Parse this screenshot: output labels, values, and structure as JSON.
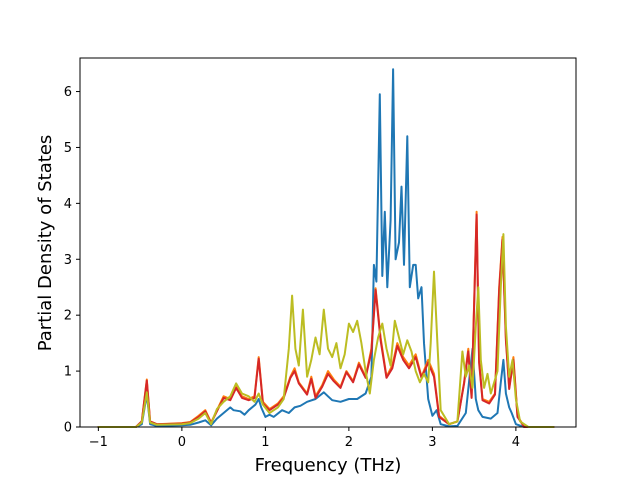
{
  "chart_data": {
    "type": "line",
    "xlabel": "Frequency (THz)",
    "ylabel": "Partial Density of States",
    "xlim": [
      -1.22,
      4.72
    ],
    "ylim": [
      0,
      6.6
    ],
    "xticks": [
      -1,
      0,
      1,
      2,
      3,
      4
    ],
    "xtick_labels": [
      "−1",
      "0",
      "1",
      "2",
      "3",
      "4"
    ],
    "yticks": [
      0,
      1,
      2,
      3,
      4,
      5,
      6
    ],
    "ytick_labels": [
      "0",
      "1",
      "2",
      "3",
      "4",
      "5",
      "6"
    ],
    "grid": false,
    "legend": "none",
    "series": [
      {
        "color": "#1f77b4",
        "points": [
          [
            -1,
            0
          ],
          [
            -0.55,
            0
          ],
          [
            -0.48,
            0.05
          ],
          [
            -0.42,
            0.58
          ],
          [
            -0.38,
            0.05
          ],
          [
            -0.3,
            0.02
          ],
          [
            0,
            0.03
          ],
          [
            0.1,
            0.04
          ],
          [
            0.2,
            0.08
          ],
          [
            0.28,
            0.12
          ],
          [
            0.35,
            0.03
          ],
          [
            0.42,
            0.15
          ],
          [
            0.5,
            0.25
          ],
          [
            0.58,
            0.35
          ],
          [
            0.62,
            0.3
          ],
          [
            0.7,
            0.28
          ],
          [
            0.75,
            0.22
          ],
          [
            0.8,
            0.3
          ],
          [
            0.88,
            0.4
          ],
          [
            0.92,
            0.5
          ],
          [
            0.95,
            0.35
          ],
          [
            1.0,
            0.18
          ],
          [
            1.05,
            0.22
          ],
          [
            1.1,
            0.18
          ],
          [
            1.2,
            0.3
          ],
          [
            1.28,
            0.25
          ],
          [
            1.35,
            0.35
          ],
          [
            1.42,
            0.38
          ],
          [
            1.5,
            0.45
          ],
          [
            1.6,
            0.5
          ],
          [
            1.7,
            0.62
          ],
          [
            1.75,
            0.55
          ],
          [
            1.8,
            0.48
          ],
          [
            1.9,
            0.45
          ],
          [
            2.0,
            0.5
          ],
          [
            2.1,
            0.5
          ],
          [
            2.2,
            0.6
          ],
          [
            2.27,
            0.9
          ],
          [
            2.3,
            2.9
          ],
          [
            2.33,
            2.6
          ],
          [
            2.37,
            5.95
          ],
          [
            2.4,
            2.7
          ],
          [
            2.43,
            3.85
          ],
          [
            2.46,
            2.5
          ],
          [
            2.5,
            3.7
          ],
          [
            2.53,
            6.4
          ],
          [
            2.56,
            3.0
          ],
          [
            2.6,
            3.3
          ],
          [
            2.63,
            4.3
          ],
          [
            2.66,
            2.9
          ],
          [
            2.7,
            5.2
          ],
          [
            2.73,
            2.5
          ],
          [
            2.77,
            2.9
          ],
          [
            2.8,
            2.9
          ],
          [
            2.83,
            2.3
          ],
          [
            2.87,
            2.5
          ],
          [
            2.9,
            1.5
          ],
          [
            2.95,
            0.5
          ],
          [
            3.0,
            0.2
          ],
          [
            3.05,
            0.3
          ],
          [
            3.1,
            0.05
          ],
          [
            3.2,
            0.01
          ],
          [
            3.3,
            0.02
          ],
          [
            3.4,
            0.25
          ],
          [
            3.48,
            1.4
          ],
          [
            3.52,
            0.5
          ],
          [
            3.55,
            0.3
          ],
          [
            3.6,
            0.18
          ],
          [
            3.7,
            0.15
          ],
          [
            3.78,
            0.25
          ],
          [
            3.82,
            0.8
          ],
          [
            3.85,
            1.2
          ],
          [
            3.88,
            0.6
          ],
          [
            3.92,
            0.35
          ],
          [
            3.95,
            0.25
          ],
          [
            4.0,
            0.05
          ],
          [
            4.1,
            0
          ],
          [
            4.45,
            0
          ]
        ]
      },
      {
        "color": "#ff7f0e",
        "points": [
          [
            -1,
            0
          ],
          [
            -0.55,
            0
          ],
          [
            -0.48,
            0.1
          ],
          [
            -0.42,
            0.85
          ],
          [
            -0.38,
            0.1
          ],
          [
            -0.3,
            0.05
          ],
          [
            0,
            0.07
          ],
          [
            0.1,
            0.09
          ],
          [
            0.2,
            0.2
          ],
          [
            0.28,
            0.3
          ],
          [
            0.35,
            0.08
          ],
          [
            0.42,
            0.3
          ],
          [
            0.5,
            0.55
          ],
          [
            0.58,
            0.5
          ],
          [
            0.65,
            0.72
          ],
          [
            0.72,
            0.55
          ],
          [
            0.8,
            0.5
          ],
          [
            0.87,
            0.55
          ],
          [
            0.92,
            1.25
          ],
          [
            0.97,
            0.45
          ],
          [
            1.05,
            0.32
          ],
          [
            1.15,
            0.42
          ],
          [
            1.22,
            0.55
          ],
          [
            1.3,
            0.9
          ],
          [
            1.35,
            1.05
          ],
          [
            1.4,
            0.8
          ],
          [
            1.5,
            0.6
          ],
          [
            1.55,
            0.9
          ],
          [
            1.6,
            0.55
          ],
          [
            1.68,
            0.75
          ],
          [
            1.75,
            1.0
          ],
          [
            1.82,
            0.85
          ],
          [
            1.9,
            0.72
          ],
          [
            1.97,
            1.0
          ],
          [
            2.05,
            0.82
          ],
          [
            2.12,
            1.15
          ],
          [
            2.2,
            0.9
          ],
          [
            2.27,
            1.4
          ],
          [
            2.32,
            2.48
          ],
          [
            2.38,
            1.6
          ],
          [
            2.45,
            0.9
          ],
          [
            2.52,
            1.1
          ],
          [
            2.58,
            1.5
          ],
          [
            2.65,
            1.25
          ],
          [
            2.72,
            1.1
          ],
          [
            2.8,
            1.3
          ],
          [
            2.87,
            0.9
          ],
          [
            2.95,
            1.2
          ],
          [
            3.02,
            0.95
          ],
          [
            3.08,
            0.2
          ],
          [
            3.2,
            0.05
          ],
          [
            3.3,
            0.1
          ],
          [
            3.38,
            0.8
          ],
          [
            3.43,
            1.4
          ],
          [
            3.47,
            0.55
          ],
          [
            3.5,
            2.2
          ],
          [
            3.53,
            3.85
          ],
          [
            3.56,
            1.2
          ],
          [
            3.6,
            0.5
          ],
          [
            3.68,
            0.45
          ],
          [
            3.75,
            0.6
          ],
          [
            3.8,
            2.5
          ],
          [
            3.84,
            3.4
          ],
          [
            3.88,
            1.6
          ],
          [
            3.92,
            0.7
          ],
          [
            3.97,
            1.25
          ],
          [
            4.02,
            0.2
          ],
          [
            4.1,
            0
          ],
          [
            4.45,
            0
          ]
        ]
      },
      {
        "color": "#d62728",
        "points": [
          [
            -1,
            0
          ],
          [
            -0.55,
            0
          ],
          [
            -0.48,
            0.1
          ],
          [
            -0.42,
            0.83
          ],
          [
            -0.38,
            0.1
          ],
          [
            -0.3,
            0.05
          ],
          [
            0,
            0.06
          ],
          [
            0.1,
            0.08
          ],
          [
            0.2,
            0.18
          ],
          [
            0.28,
            0.28
          ],
          [
            0.35,
            0.07
          ],
          [
            0.42,
            0.28
          ],
          [
            0.5,
            0.52
          ],
          [
            0.58,
            0.48
          ],
          [
            0.65,
            0.7
          ],
          [
            0.72,
            0.52
          ],
          [
            0.8,
            0.48
          ],
          [
            0.87,
            0.52
          ],
          [
            0.92,
            1.22
          ],
          [
            0.97,
            0.42
          ],
          [
            1.05,
            0.3
          ],
          [
            1.15,
            0.4
          ],
          [
            1.22,
            0.52
          ],
          [
            1.3,
            0.88
          ],
          [
            1.35,
            1.0
          ],
          [
            1.4,
            0.78
          ],
          [
            1.5,
            0.58
          ],
          [
            1.55,
            0.86
          ],
          [
            1.6,
            0.52
          ],
          [
            1.68,
            0.72
          ],
          [
            1.75,
            0.95
          ],
          [
            1.82,
            0.82
          ],
          [
            1.9,
            0.7
          ],
          [
            1.97,
            0.98
          ],
          [
            2.05,
            0.8
          ],
          [
            2.12,
            1.12
          ],
          [
            2.2,
            0.88
          ],
          [
            2.27,
            1.35
          ],
          [
            2.32,
            2.45
          ],
          [
            2.38,
            1.55
          ],
          [
            2.45,
            0.88
          ],
          [
            2.52,
            1.05
          ],
          [
            2.58,
            1.45
          ],
          [
            2.65,
            1.2
          ],
          [
            2.72,
            1.05
          ],
          [
            2.8,
            1.25
          ],
          [
            2.87,
            0.88
          ],
          [
            2.95,
            1.15
          ],
          [
            3.02,
            0.9
          ],
          [
            3.08,
            0.18
          ],
          [
            3.2,
            0.05
          ],
          [
            3.3,
            0.1
          ],
          [
            3.38,
            0.78
          ],
          [
            3.43,
            1.35
          ],
          [
            3.47,
            0.52
          ],
          [
            3.5,
            2.15
          ],
          [
            3.53,
            3.8
          ],
          [
            3.56,
            1.15
          ],
          [
            3.6,
            0.48
          ],
          [
            3.68,
            0.42
          ],
          [
            3.75,
            0.58
          ],
          [
            3.8,
            2.45
          ],
          [
            3.84,
            3.35
          ],
          [
            3.88,
            1.55
          ],
          [
            3.92,
            0.68
          ],
          [
            3.97,
            1.2
          ],
          [
            4.02,
            0.18
          ],
          [
            4.1,
            0
          ],
          [
            4.45,
            0
          ]
        ]
      },
      {
        "color": "#bcbd22",
        "points": [
          [
            -1,
            0
          ],
          [
            -0.55,
            0
          ],
          [
            -0.48,
            0.08
          ],
          [
            -0.42,
            0.62
          ],
          [
            -0.38,
            0.08
          ],
          [
            -0.3,
            0.04
          ],
          [
            0,
            0.05
          ],
          [
            0.1,
            0.07
          ],
          [
            0.2,
            0.15
          ],
          [
            0.28,
            0.25
          ],
          [
            0.35,
            0.05
          ],
          [
            0.42,
            0.32
          ],
          [
            0.5,
            0.45
          ],
          [
            0.58,
            0.55
          ],
          [
            0.65,
            0.78
          ],
          [
            0.72,
            0.6
          ],
          [
            0.8,
            0.55
          ],
          [
            0.87,
            0.45
          ],
          [
            0.92,
            0.6
          ],
          [
            0.97,
            0.4
          ],
          [
            1.05,
            0.25
          ],
          [
            1.15,
            0.35
          ],
          [
            1.22,
            0.5
          ],
          [
            1.28,
            1.4
          ],
          [
            1.32,
            2.35
          ],
          [
            1.36,
            1.4
          ],
          [
            1.4,
            1.1
          ],
          [
            1.45,
            2.1
          ],
          [
            1.5,
            0.9
          ],
          [
            1.55,
            1.2
          ],
          [
            1.6,
            1.6
          ],
          [
            1.65,
            1.3
          ],
          [
            1.7,
            2.1
          ],
          [
            1.75,
            1.4
          ],
          [
            1.8,
            1.25
          ],
          [
            1.85,
            1.5
          ],
          [
            1.9,
            1.05
          ],
          [
            1.95,
            1.3
          ],
          [
            2.0,
            1.85
          ],
          [
            2.05,
            1.7
          ],
          [
            2.1,
            1.9
          ],
          [
            2.15,
            1.5
          ],
          [
            2.2,
            1.0
          ],
          [
            2.25,
            0.6
          ],
          [
            2.3,
            1.2
          ],
          [
            2.35,
            1.6
          ],
          [
            2.4,
            1.85
          ],
          [
            2.45,
            1.4
          ],
          [
            2.5,
            1.1
          ],
          [
            2.55,
            1.9
          ],
          [
            2.6,
            1.6
          ],
          [
            2.65,
            1.3
          ],
          [
            2.7,
            1.55
          ],
          [
            2.75,
            1.35
          ],
          [
            2.8,
            1.0
          ],
          [
            2.85,
            0.8
          ],
          [
            2.9,
            0.95
          ],
          [
            2.95,
            0.8
          ],
          [
            2.98,
            1.5
          ],
          [
            3.02,
            2.78
          ],
          [
            3.06,
            1.5
          ],
          [
            3.1,
            0.3
          ],
          [
            3.2,
            0.05
          ],
          [
            3.3,
            0.1
          ],
          [
            3.36,
            1.35
          ],
          [
            3.4,
            0.9
          ],
          [
            3.44,
            1.1
          ],
          [
            3.48,
            0.7
          ],
          [
            3.52,
            1.8
          ],
          [
            3.55,
            2.5
          ],
          [
            3.58,
            1.2
          ],
          [
            3.62,
            0.7
          ],
          [
            3.66,
            0.95
          ],
          [
            3.7,
            0.6
          ],
          [
            3.74,
            0.8
          ],
          [
            3.78,
            1.0
          ],
          [
            3.82,
            2.5
          ],
          [
            3.85,
            3.45
          ],
          [
            3.88,
            1.8
          ],
          [
            3.92,
            0.9
          ],
          [
            3.96,
            1.2
          ],
          [
            4.0,
            0.5
          ],
          [
            4.05,
            0.1
          ],
          [
            4.15,
            0
          ],
          [
            4.45,
            0
          ]
        ]
      }
    ]
  }
}
